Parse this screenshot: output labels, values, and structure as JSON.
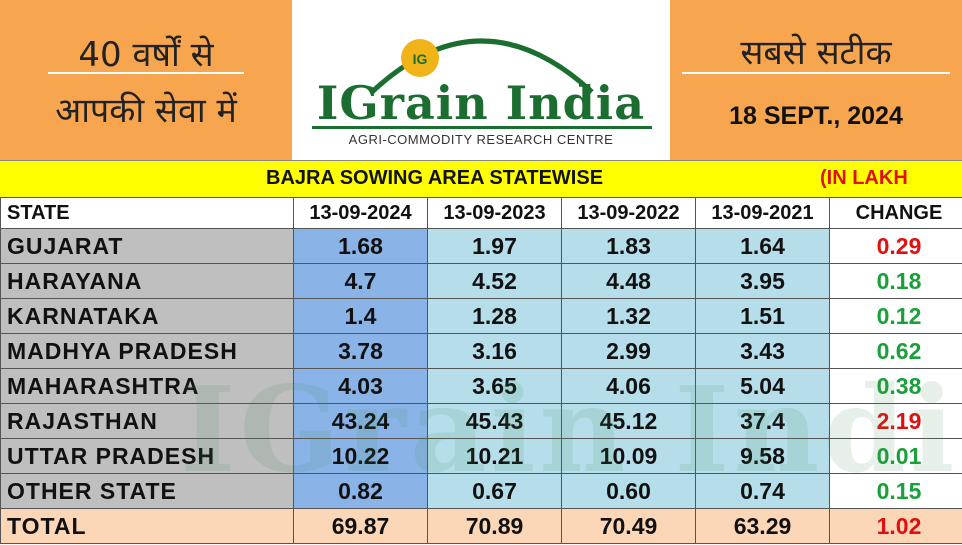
{
  "header": {
    "left_line1": "40 वर्षों से",
    "left_line2": "आपकी सेवा में",
    "logo_name": "IGrain India",
    "logo_subtitle": "AGRI-COMMODITY RESEARCH CENTRE",
    "logo_badge": "IG",
    "right_line1": "सबसे सटीक",
    "date": "18 SEPT., 2024"
  },
  "title": "BAJRA SOWING AREA STATEWISE",
  "unit": "(IN LAKH",
  "watermark": "IGrain India",
  "colors": {
    "orange": "#f7a64f",
    "yellow_band": "#ffff00",
    "logo_green": "#1b6e2f",
    "positive_change": "#1aa03a",
    "highlight_change": "#e01010"
  },
  "table": {
    "columns": [
      "STATE",
      "13-09-2024",
      "13-09-2023",
      "13-09-2022",
      "13-09-2021",
      "CHANGE"
    ],
    "rows": [
      {
        "state": "GUJARAT",
        "v2024": "1.68",
        "v2023": "1.97",
        "v2022": "1.83",
        "v2021": "1.64",
        "change": "0.29",
        "change_color": "red"
      },
      {
        "state": "HARAYANA",
        "v2024": "4.7",
        "v2023": "4.52",
        "v2022": "4.48",
        "v2021": "3.95",
        "change": "0.18",
        "change_color": "green"
      },
      {
        "state": "KARNATAKA",
        "v2024": "1.4",
        "v2023": "1.28",
        "v2022": "1.32",
        "v2021": "1.51",
        "change": "0.12",
        "change_color": "green"
      },
      {
        "state": "MADHYA PRADESH",
        "v2024": "3.78",
        "v2023": "3.16",
        "v2022": "2.99",
        "v2021": "3.43",
        "change": "0.62",
        "change_color": "green"
      },
      {
        "state": "MAHARASHTRA",
        "v2024": "4.03",
        "v2023": "3.65",
        "v2022": "4.06",
        "v2021": "5.04",
        "change": "0.38",
        "change_color": "green"
      },
      {
        "state": "RAJASTHAN",
        "v2024": "43.24",
        "v2023": "45.43",
        "v2022": "45.12",
        "v2021": "37.4",
        "change": "2.19",
        "change_color": "red"
      },
      {
        "state": "UTTAR PRADESH",
        "v2024": "10.22",
        "v2023": "10.21",
        "v2022": "10.09",
        "v2021": "9.58",
        "change": "0.01",
        "change_color": "green"
      },
      {
        "state": "OTHER STATE",
        "v2024": "0.82",
        "v2023": "0.67",
        "v2022": "0.60",
        "v2021": "0.74",
        "change": "0.15",
        "change_color": "green"
      }
    ],
    "total": {
      "state": "TOTAL",
      "v2024": "69.87",
      "v2023": "70.89",
      "v2022": "70.49",
      "v2021": "63.29",
      "change": "1.02",
      "change_color": "red"
    }
  }
}
